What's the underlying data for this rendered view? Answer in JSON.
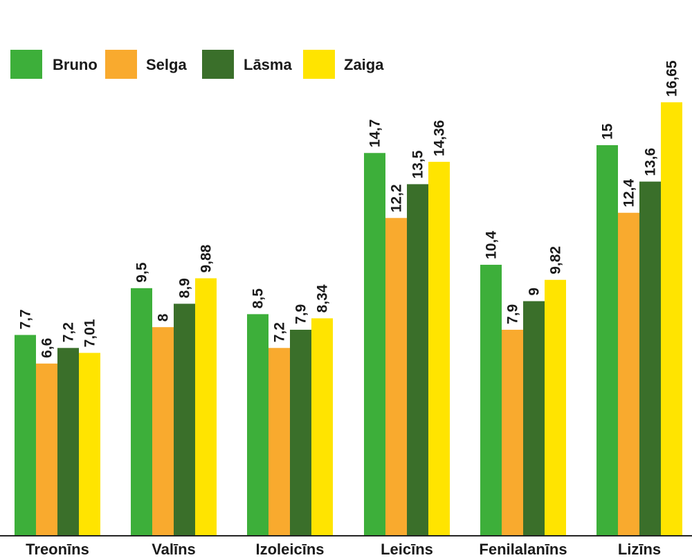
{
  "chart_data": {
    "type": "bar",
    "categories": [
      "Treonīns",
      "Valīns",
      "Izoleicīns",
      "Leicīns",
      "Fenilalanīns",
      "Lizīns"
    ],
    "series": [
      {
        "name": "Bruno",
        "color": "#3daf3a",
        "values": [
          7.7,
          9.5,
          8.5,
          14.7,
          10.4,
          15
        ],
        "labels": [
          "7,7",
          "9,5",
          "8,5",
          "14,7",
          "10,4",
          "15"
        ]
      },
      {
        "name": "Selga",
        "color": "#f9aa2e",
        "values": [
          6.6,
          8,
          7.2,
          12.2,
          7.9,
          12.4
        ],
        "labels": [
          "6,6",
          "8",
          "7,2",
          "12,2",
          "7,9",
          "12,4"
        ]
      },
      {
        "name": "Lāsma",
        "color": "#3a6f2a",
        "values": [
          7.2,
          8.9,
          7.9,
          13.5,
          9,
          13.6
        ],
        "labels": [
          "7,2",
          "8,9",
          "7,9",
          "13,5",
          "9",
          "13,6"
        ]
      },
      {
        "name": "Zaiga",
        "color": "#ffe400",
        "values": [
          7.01,
          9.88,
          8.34,
          14.36,
          9.82,
          16.65
        ],
        "labels": [
          "7,01",
          "9,88",
          "8,34",
          "14,36",
          "9,82",
          "16,65"
        ]
      }
    ],
    "ylim": [
      0,
      18.5
    ],
    "grid": false,
    "legend": "top-left",
    "title": "",
    "xlabel": "",
    "ylabel": ""
  }
}
